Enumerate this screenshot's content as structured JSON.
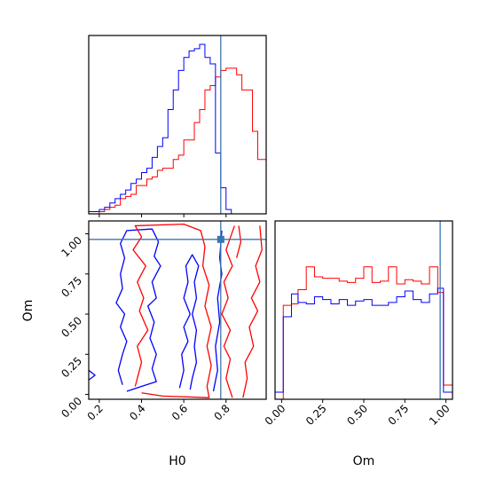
{
  "colors": {
    "red": "#ff0000",
    "blue": "#0000ff",
    "truth": "#3b75af",
    "axes": "#000000"
  },
  "chart_data": {
    "type": "corner",
    "truths": {
      "H0": 0.775,
      "Om": 0.965
    },
    "panels": [
      {
        "id": "hist-H0",
        "type": "histogram",
        "xlim": [
          0.15,
          0.99
        ],
        "bins": [
          0.15,
          0.175,
          0.2,
          0.225,
          0.25,
          0.275,
          0.3,
          0.325,
          0.35,
          0.375,
          0.4,
          0.425,
          0.45,
          0.475,
          0.5,
          0.525,
          0.55,
          0.575,
          0.6,
          0.625,
          0.65,
          0.675,
          0.7,
          0.725,
          0.75,
          0.775,
          0.8,
          0.825,
          0.85,
          0.875,
          0.9,
          0.925,
          0.95,
          0.975,
          0.99
        ],
        "series": [
          {
            "color": "red",
            "values": [
              0,
              0,
              1,
              2,
              3,
              4,
              7,
              8,
              9,
              13,
              13,
              16,
              17,
              20,
              21,
              21,
              25,
              27,
              34,
              34,
              42,
              48,
              57,
              59,
              63,
              66,
              67,
              67,
              64,
              57,
              57,
              38,
              25,
              25
            ]
          },
          {
            "color": "blue",
            "values": [
              1,
              1,
              2,
              3,
              5,
              7,
              9,
              11,
              14,
              16,
              19,
              21,
              26,
              31,
              35,
              48,
              57,
              66,
              72,
              75,
              76,
              78,
              72,
              69,
              28,
              12,
              2,
              0,
              0,
              0,
              0,
              0,
              0,
              0
            ]
          }
        ]
      },
      {
        "id": "contour-H0-Om",
        "type": "contour",
        "xlabel": "H0",
        "ylabel": "Om",
        "xlim": [
          0.15,
          0.99
        ],
        "ylim": [
          -0.03,
          1.08
        ],
        "xticks": [
          "0.2",
          "0.4",
          "0.6",
          "0.8"
        ],
        "yticks": [
          "0.00",
          "0.25",
          "0.50",
          "0.75",
          "1.00"
        ],
        "contours": [
          {
            "color": "blue",
            "points": [
              [
                0.31,
                0.06
              ],
              [
                0.29,
                0.15
              ],
              [
                0.31,
                0.25
              ],
              [
                0.33,
                0.33
              ],
              [
                0.3,
                0.42
              ],
              [
                0.32,
                0.5
              ],
              [
                0.28,
                0.57
              ],
              [
                0.31,
                0.66
              ],
              [
                0.3,
                0.75
              ],
              [
                0.32,
                0.85
              ],
              [
                0.3,
                0.94
              ],
              [
                0.33,
                1.02
              ],
              [
                0.45,
                1.03
              ],
              [
                0.48,
                0.95
              ],
              [
                0.46,
                0.86
              ],
              [
                0.49,
                0.8
              ],
              [
                0.45,
                0.7
              ],
              [
                0.47,
                0.6
              ],
              [
                0.43,
                0.55
              ],
              [
                0.46,
                0.45
              ],
              [
                0.44,
                0.35
              ],
              [
                0.47,
                0.25
              ],
              [
                0.45,
                0.16
              ],
              [
                0.47,
                0.08
              ],
              [
                0.4,
                0.05
              ],
              [
                0.33,
                0.02
              ]
            ]
          },
          {
            "color": "blue",
            "points": [
              [
                0.58,
                0.04
              ],
              [
                0.6,
                0.15
              ],
              [
                0.59,
                0.25
              ],
              [
                0.62,
                0.33
              ],
              [
                0.6,
                0.42
              ],
              [
                0.63,
                0.5
              ],
              [
                0.6,
                0.6
              ],
              [
                0.62,
                0.7
              ],
              [
                0.61,
                0.8
              ],
              [
                0.64,
                0.87
              ],
              [
                0.67,
                0.8
              ],
              [
                0.65,
                0.7
              ],
              [
                0.66,
                0.6
              ],
              [
                0.64,
                0.5
              ],
              [
                0.66,
                0.4
              ],
              [
                0.65,
                0.3
              ],
              [
                0.66,
                0.2
              ],
              [
                0.64,
                0.1
              ],
              [
                0.63,
                0.03
              ]
            ]
          },
          {
            "color": "blue",
            "points": [
              [
                0.74,
                0.02
              ],
              [
                0.76,
                0.15
              ],
              [
                0.75,
                0.3
              ],
              [
                0.77,
                0.45
              ],
              [
                0.76,
                0.6
              ],
              [
                0.78,
                0.75
              ],
              [
                0.77,
                0.85
              ],
              [
                0.78,
                1.02
              ]
            ]
          },
          {
            "color": "blue",
            "points": [
              [
                0.15,
                0.15
              ],
              [
                0.18,
                0.12
              ],
              [
                0.15,
                0.09
              ]
            ]
          },
          {
            "color": "red",
            "points": [
              [
                0.37,
                0.05
              ],
              [
                0.4,
                0.2
              ],
              [
                0.38,
                0.3
              ],
              [
                0.43,
                0.4
              ],
              [
                0.39,
                0.52
              ],
              [
                0.41,
                0.6
              ],
              [
                0.38,
                0.7
              ],
              [
                0.42,
                0.8
              ],
              [
                0.36,
                0.9
              ],
              [
                0.4,
                0.98
              ],
              [
                0.37,
                1.05
              ],
              [
                0.6,
                1.06
              ],
              [
                0.68,
                1.02
              ],
              [
                0.7,
                0.92
              ],
              [
                0.69,
                0.8
              ],
              [
                0.72,
                0.68
              ],
              [
                0.7,
                0.55
              ],
              [
                0.73,
                0.42
              ],
              [
                0.71,
                0.3
              ],
              [
                0.73,
                0.18
              ],
              [
                0.71,
                0.05
              ],
              [
                0.72,
                -0.02
              ],
              [
                0.5,
                -0.01
              ],
              [
                0.4,
                0.01
              ]
            ]
          },
          {
            "color": "red",
            "points": [
              [
                0.83,
                -0.02
              ],
              [
                0.8,
                0.1
              ],
              [
                0.82,
                0.22
              ],
              [
                0.79,
                0.3
              ],
              [
                0.82,
                0.4
              ],
              [
                0.78,
                0.5
              ],
              [
                0.81,
                0.6
              ],
              [
                0.79,
                0.7
              ],
              [
                0.83,
                0.8
              ],
              [
                0.8,
                0.9
              ],
              [
                0.84,
                1.05
              ]
            ]
          },
          {
            "color": "red",
            "points": [
              [
                0.88,
                -0.02
              ],
              [
                0.9,
                0.1
              ],
              [
                0.89,
                0.2
              ],
              [
                0.93,
                0.3
              ],
              [
                0.91,
                0.42
              ],
              [
                0.95,
                0.52
              ],
              [
                0.92,
                0.6
              ],
              [
                0.96,
                0.7
              ],
              [
                0.94,
                0.8
              ],
              [
                0.97,
                0.9
              ],
              [
                0.96,
                1.05
              ]
            ]
          },
          {
            "color": "red",
            "points": [
              [
                0.85,
                0.85
              ],
              [
                0.87,
                0.95
              ],
              [
                0.86,
                1.05
              ]
            ]
          }
        ]
      },
      {
        "id": "hist-Om",
        "type": "histogram",
        "xlabel": "Om",
        "xlim": [
          -0.04,
          1.04
        ],
        "xticks": [
          "0.00",
          "0.25",
          "0.50",
          "0.75",
          "1.00"
        ],
        "bins": [
          -0.04,
          0.01,
          0.06,
          0.1,
          0.15,
          0.2,
          0.25,
          0.3,
          0.35,
          0.4,
          0.45,
          0.5,
          0.55,
          0.6,
          0.65,
          0.7,
          0.75,
          0.8,
          0.85,
          0.9,
          0.95,
          0.985,
          1.04
        ],
        "series": [
          {
            "color": "red",
            "values": [
              0,
              0.66,
              0.67,
              0.77,
              0.93,
              0.86,
              0.85,
              0.85,
              0.83,
              0.82,
              0.85,
              0.93,
              0.82,
              0.83,
              0.93,
              0.81,
              0.84,
              0.83,
              0.81,
              0.93,
              0.75,
              0.1
            ]
          },
          {
            "color": "blue",
            "values": [
              0.05,
              0.58,
              0.74,
              0.68,
              0.67,
              0.72,
              0.7,
              0.67,
              0.7,
              0.66,
              0.69,
              0.7,
              0.66,
              0.66,
              0.68,
              0.72,
              0.76,
              0.7,
              0.68,
              0.74,
              0.78,
              0.05
            ]
          }
        ]
      }
    ]
  }
}
